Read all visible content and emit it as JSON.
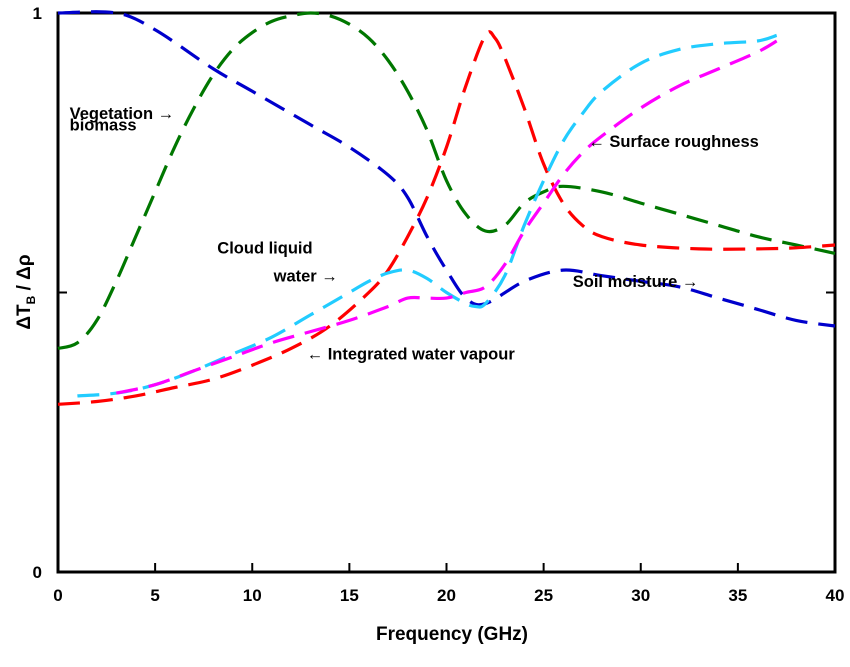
{
  "chart_data": {
    "type": "line",
    "title": "",
    "xlabel": "Frequency (GHz)",
    "ylabel": "ΔT_B / Δρ",
    "xlim": [
      0,
      40
    ],
    "ylim": [
      0,
      1
    ],
    "xticks": [
      "0",
      "5",
      "10",
      "15",
      "20",
      "25",
      "30",
      "35",
      "40"
    ],
    "yticks": [
      "0",
      "1"
    ],
    "grid": false,
    "line_style": "dashed",
    "series": [
      {
        "name": "Soil moisture",
        "color": "#0000cc",
        "points": [
          [
            0,
            1.0
          ],
          [
            3,
            1.0
          ],
          [
            5,
            0.97
          ],
          [
            8,
            0.9
          ],
          [
            10,
            0.86
          ],
          [
            13,
            0.8
          ],
          [
            15,
            0.76
          ],
          [
            17,
            0.71
          ],
          [
            18,
            0.67
          ],
          [
            19,
            0.6
          ],
          [
            20,
            0.54
          ],
          [
            21,
            0.49
          ],
          [
            22,
            0.48
          ],
          [
            24,
            0.52
          ],
          [
            26,
            0.54
          ],
          [
            28,
            0.53
          ],
          [
            30,
            0.52
          ],
          [
            32,
            0.51
          ],
          [
            34,
            0.49
          ],
          [
            36,
            0.47
          ],
          [
            38,
            0.45
          ],
          [
            40,
            0.44
          ]
        ]
      },
      {
        "name": "Vegetation biomass",
        "color": "#007700",
        "points": [
          [
            0,
            0.4
          ],
          [
            1,
            0.41
          ],
          [
            2,
            0.45
          ],
          [
            3,
            0.52
          ],
          [
            4,
            0.6
          ],
          [
            5,
            0.68
          ],
          [
            6,
            0.76
          ],
          [
            7,
            0.83
          ],
          [
            8,
            0.89
          ],
          [
            9,
            0.935
          ],
          [
            10,
            0.965
          ],
          [
            11,
            0.985
          ],
          [
            12,
            0.995
          ],
          [
            13,
            1.0
          ],
          [
            14,
            0.995
          ],
          [
            15,
            0.98
          ],
          [
            16,
            0.955
          ],
          [
            17,
            0.915
          ],
          [
            18,
            0.86
          ],
          [
            19,
            0.79
          ],
          [
            20,
            0.7
          ],
          [
            21,
            0.64
          ],
          [
            22,
            0.61
          ],
          [
            23,
            0.62
          ],
          [
            24,
            0.66
          ],
          [
            25,
            0.68
          ],
          [
            26,
            0.69
          ],
          [
            28,
            0.68
          ],
          [
            30,
            0.66
          ],
          [
            32,
            0.64
          ],
          [
            34,
            0.62
          ],
          [
            36,
            0.6
          ],
          [
            38,
            0.585
          ],
          [
            40,
            0.57
          ]
        ]
      },
      {
        "name": "Integrated water vapour",
        "color": "#ff0000",
        "points": [
          [
            0,
            0.3
          ],
          [
            2,
            0.305
          ],
          [
            4,
            0.315
          ],
          [
            6,
            0.33
          ],
          [
            8,
            0.345
          ],
          [
            10,
            0.37
          ],
          [
            12,
            0.4
          ],
          [
            14,
            0.44
          ],
          [
            16,
            0.5
          ],
          [
            17,
            0.54
          ],
          [
            18,
            0.6
          ],
          [
            19,
            0.67
          ],
          [
            20,
            0.76
          ],
          [
            21,
            0.87
          ],
          [
            22,
            0.96
          ],
          [
            22.5,
            0.955
          ],
          [
            23,
            0.92
          ],
          [
            24,
            0.83
          ],
          [
            25,
            0.73
          ],
          [
            26,
            0.66
          ],
          [
            27,
            0.62
          ],
          [
            28,
            0.6
          ],
          [
            30,
            0.585
          ],
          [
            33,
            0.578
          ],
          [
            36,
            0.578
          ],
          [
            38,
            0.58
          ],
          [
            40,
            0.585
          ]
        ]
      },
      {
        "name": "Cloud liquid water",
        "color": "#22ccff",
        "points": [
          [
            1,
            0.315
          ],
          [
            3,
            0.32
          ],
          [
            5,
            0.335
          ],
          [
            7,
            0.36
          ],
          [
            9,
            0.39
          ],
          [
            11,
            0.42
          ],
          [
            13,
            0.46
          ],
          [
            15,
            0.5
          ],
          [
            16,
            0.52
          ],
          [
            17,
            0.535
          ],
          [
            18,
            0.54
          ],
          [
            19,
            0.525
          ],
          [
            20,
            0.5
          ],
          [
            21,
            0.48
          ],
          [
            21.5,
            0.475
          ],
          [
            22,
            0.48
          ],
          [
            23,
            0.53
          ],
          [
            24,
            0.62
          ],
          [
            25,
            0.7
          ],
          [
            26,
            0.77
          ],
          [
            27,
            0.82
          ],
          [
            28,
            0.86
          ],
          [
            30,
            0.91
          ],
          [
            32,
            0.935
          ],
          [
            34,
            0.945
          ],
          [
            36,
            0.95
          ],
          [
            37,
            0.96
          ]
        ]
      },
      {
        "name": "Surface roughness",
        "color": "#ff00ff",
        "points": [
          [
            3,
            0.32
          ],
          [
            5,
            0.335
          ],
          [
            7,
            0.36
          ],
          [
            9,
            0.385
          ],
          [
            11,
            0.41
          ],
          [
            13,
            0.43
          ],
          [
            15,
            0.45
          ],
          [
            17,
            0.475
          ],
          [
            18,
            0.49
          ],
          [
            19,
            0.49
          ],
          [
            20,
            0.49
          ],
          [
            21,
            0.5
          ],
          [
            22,
            0.51
          ],
          [
            23,
            0.55
          ],
          [
            24,
            0.61
          ],
          [
            25,
            0.66
          ],
          [
            26,
            0.71
          ],
          [
            27,
            0.75
          ],
          [
            28,
            0.78
          ],
          [
            30,
            0.83
          ],
          [
            32,
            0.87
          ],
          [
            34,
            0.9
          ],
          [
            36,
            0.93
          ],
          [
            37,
            0.95
          ]
        ]
      }
    ],
    "annotations": [
      {
        "text": "Vegetation →",
        "x": 0.6,
        "y": 0.81
      },
      {
        "text": "biomass",
        "x": 0.6,
        "y": 0.79
      },
      {
        "text": "← Surface roughness",
        "x": 27.3,
        "y": 0.76
      },
      {
        "text": "Cloud liquid",
        "x": 8.2,
        "y": 0.57
      },
      {
        "text": "water →",
        "x": 11.1,
        "y": 0.52
      },
      {
        "text": "Soil moisture →",
        "x": 26.5,
        "y": 0.51
      },
      {
        "text": "← Integrated water vapour",
        "x": 12.8,
        "y": 0.38
      }
    ]
  }
}
